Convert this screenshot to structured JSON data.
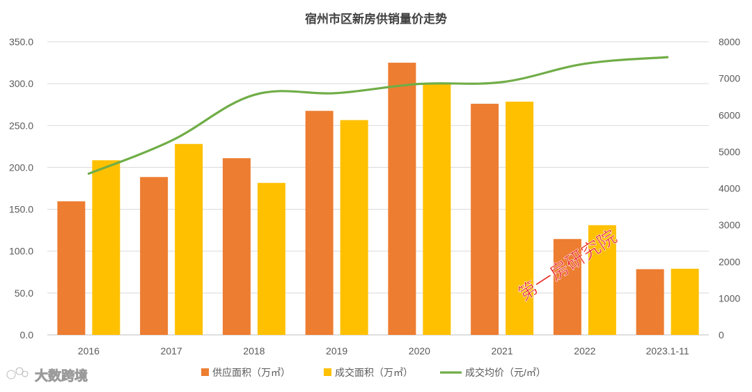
{
  "chart_data": {
    "type": "bar",
    "title": "宿州市区新房供销量价走势",
    "categories": [
      "2016",
      "2017",
      "2018",
      "2019",
      "2020",
      "2021",
      "2022",
      "2023.1-11"
    ],
    "series": [
      {
        "name": "供应面积（万㎡）",
        "type": "bar",
        "axis": "left",
        "color": "#ED7D31",
        "values": [
          159.5,
          188.5,
          211.0,
          267.5,
          325.0,
          276.0,
          114.5,
          78.5
        ]
      },
      {
        "name": "成交面积（万㎡）",
        "type": "bar",
        "axis": "left",
        "color": "#FFC000",
        "values": [
          208.5,
          228.0,
          181.5,
          256.5,
          299.5,
          278.5,
          131.0,
          79.0
        ]
      },
      {
        "name": "成交均价（元/㎡）",
        "type": "line",
        "axis": "right",
        "color": "#70AD47",
        "values": [
          4400,
          5300,
          6550,
          6600,
          6850,
          6900,
          7400,
          7580
        ]
      }
    ],
    "left_axis": {
      "min": 0,
      "max": 350,
      "step": 50,
      "tick_labels": [
        "0.0",
        "50.0",
        "100.0",
        "150.0",
        "200.0",
        "250.0",
        "300.0",
        "350.0"
      ]
    },
    "right_axis": {
      "min": 0,
      "max": 8000,
      "step": 1000,
      "tick_labels": [
        "0",
        "1000",
        "2000",
        "3000",
        "4000",
        "5000",
        "6000",
        "7000",
        "8000"
      ]
    },
    "grid": true,
    "legend_position": "bottom"
  },
  "watermarks": {
    "stamp": "第一房研究院",
    "brand": "大数跨境"
  }
}
